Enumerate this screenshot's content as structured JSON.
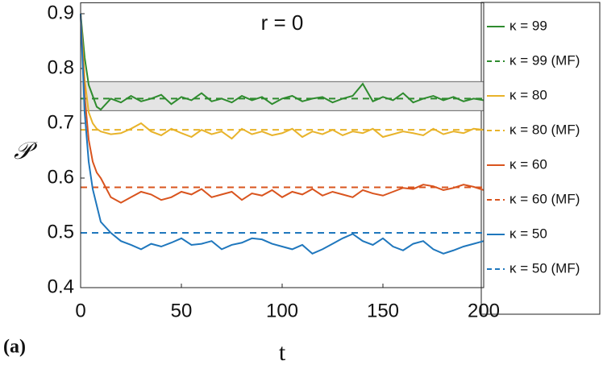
{
  "chart_data": {
    "type": "line",
    "title": "r = 0",
    "xlabel": "t",
    "ylabel": "𝒫",
    "annotation": "(a)",
    "xlim": [
      0,
      200
    ],
    "xticks": [
      0,
      50,
      100,
      150,
      200
    ],
    "ylim": [
      0.4,
      0.92
    ],
    "yticks": [
      0.4,
      0.5,
      0.6,
      0.7,
      0.8,
      0.9
    ],
    "band": [
      0.723,
      0.776
    ],
    "x": [
      0,
      2,
      4,
      6,
      8,
      10,
      15,
      20,
      25,
      30,
      35,
      40,
      45,
      50,
      55,
      60,
      65,
      70,
      75,
      80,
      85,
      90,
      95,
      100,
      105,
      110,
      115,
      120,
      125,
      130,
      135,
      140,
      145,
      150,
      155,
      160,
      165,
      170,
      175,
      180,
      185,
      190,
      195,
      200
    ],
    "series": [
      {
        "name": "κ = 99",
        "color": "#2e8b2e",
        "dashed": false,
        "values": [
          0.9,
          0.82,
          0.77,
          0.75,
          0.73,
          0.725,
          0.745,
          0.738,
          0.75,
          0.74,
          0.745,
          0.752,
          0.735,
          0.748,
          0.742,
          0.755,
          0.74,
          0.745,
          0.738,
          0.75,
          0.742,
          0.748,
          0.735,
          0.745,
          0.75,
          0.74,
          0.745,
          0.748,
          0.738,
          0.745,
          0.75,
          0.772,
          0.74,
          0.748,
          0.742,
          0.755,
          0.738,
          0.745,
          0.75,
          0.742,
          0.748,
          0.74,
          0.745,
          0.742
        ]
      },
      {
        "name": "κ = 99 (MF)",
        "color": "#2e8b2e",
        "dashed": true,
        "x": [
          0,
          200
        ],
        "values": [
          0.745,
          0.745
        ]
      },
      {
        "name": "κ = 80",
        "color": "#e8b32a",
        "dashed": false,
        "values": [
          0.9,
          0.78,
          0.72,
          0.7,
          0.69,
          0.685,
          0.68,
          0.682,
          0.69,
          0.7,
          0.685,
          0.678,
          0.69,
          0.682,
          0.675,
          0.688,
          0.68,
          0.685,
          0.672,
          0.69,
          0.68,
          0.685,
          0.678,
          0.682,
          0.69,
          0.675,
          0.685,
          0.68,
          0.688,
          0.678,
          0.685,
          0.682,
          0.69,
          0.675,
          0.68,
          0.685,
          0.682,
          0.678,
          0.69,
          0.68,
          0.685,
          0.682,
          0.69,
          0.688
        ]
      },
      {
        "name": "κ = 80 (MF)",
        "color": "#e8b32a",
        "dashed": true,
        "x": [
          0,
          200
        ],
        "values": [
          0.688,
          0.688
        ]
      },
      {
        "name": "κ = 60",
        "color": "#d9541e",
        "dashed": false,
        "values": [
          0.9,
          0.75,
          0.67,
          0.63,
          0.61,
          0.6,
          0.565,
          0.555,
          0.565,
          0.575,
          0.57,
          0.56,
          0.565,
          0.575,
          0.57,
          0.58,
          0.565,
          0.57,
          0.575,
          0.56,
          0.572,
          0.568,
          0.578,
          0.565,
          0.575,
          0.57,
          0.58,
          0.568,
          0.575,
          0.57,
          0.565,
          0.578,
          0.572,
          0.568,
          0.575,
          0.582,
          0.58,
          0.588,
          0.585,
          0.578,
          0.582,
          0.588,
          0.584,
          0.578
        ]
      },
      {
        "name": "κ = 60 (MF)",
        "color": "#d9541e",
        "dashed": true,
        "x": [
          0,
          200
        ],
        "values": [
          0.583,
          0.583
        ]
      },
      {
        "name": "κ = 50",
        "color": "#1f77bd",
        "dashed": false,
        "values": [
          0.9,
          0.72,
          0.63,
          0.58,
          0.55,
          0.52,
          0.5,
          0.485,
          0.478,
          0.47,
          0.48,
          0.475,
          0.482,
          0.49,
          0.478,
          0.48,
          0.485,
          0.47,
          0.478,
          0.482,
          0.49,
          0.488,
          0.48,
          0.475,
          0.47,
          0.478,
          0.462,
          0.47,
          0.48,
          0.49,
          0.498,
          0.485,
          0.478,
          0.49,
          0.475,
          0.468,
          0.48,
          0.485,
          0.47,
          0.462,
          0.468,
          0.475,
          0.48,
          0.485
        ]
      },
      {
        "name": "κ = 50 (MF)",
        "color": "#1f77bd",
        "dashed": true,
        "x": [
          0,
          200
        ],
        "values": [
          0.5,
          0.5
        ]
      }
    ]
  }
}
